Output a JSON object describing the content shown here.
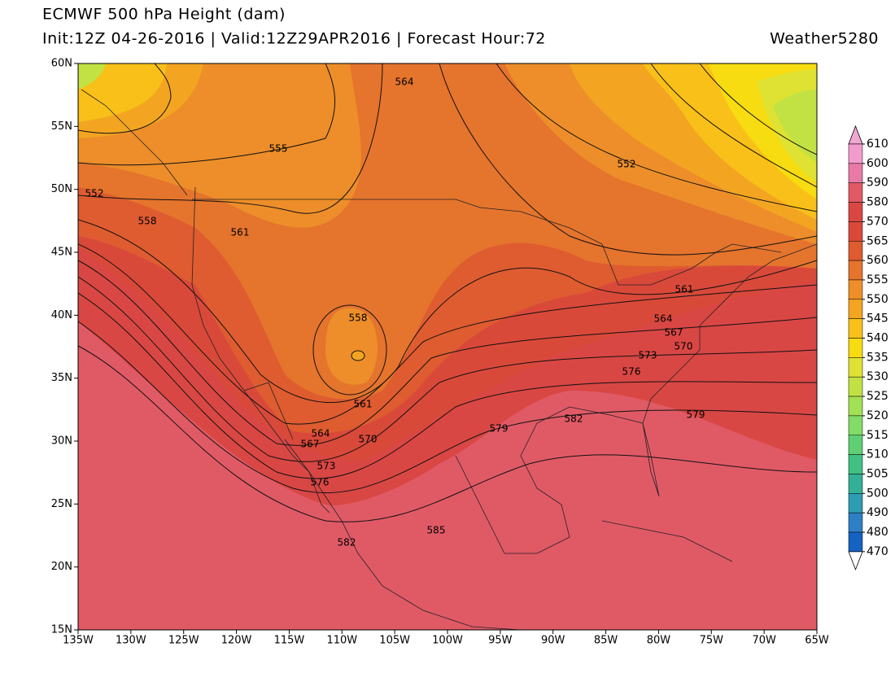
{
  "header": {
    "title": "ECMWF 500 hPa Height (dam)",
    "subtitle": "Init:12Z 04-26-2016 | Valid:12Z29APR2016 | Forecast Hour:72",
    "credit": "Weather5280"
  },
  "map": {
    "lat_ticks": [
      {
        "value": 60,
        "label": "60N"
      },
      {
        "value": 55,
        "label": "55N"
      },
      {
        "value": 50,
        "label": "50N"
      },
      {
        "value": 45,
        "label": "45N"
      },
      {
        "value": 40,
        "label": "40N"
      },
      {
        "value": 35,
        "label": "35N"
      },
      {
        "value": 30,
        "label": "30N"
      },
      {
        "value": 25,
        "label": "25N"
      },
      {
        "value": 20,
        "label": "20N"
      },
      {
        "value": 15,
        "label": "15N"
      }
    ],
    "lon_ticks": [
      {
        "value": -135,
        "label": "135W"
      },
      {
        "value": -130,
        "label": "130W"
      },
      {
        "value": -125,
        "label": "125W"
      },
      {
        "value": -120,
        "label": "120W"
      },
      {
        "value": -115,
        "label": "115W"
      },
      {
        "value": -110,
        "label": "110W"
      },
      {
        "value": -105,
        "label": "105W"
      },
      {
        "value": -100,
        "label": "100W"
      },
      {
        "value": -95,
        "label": "95W"
      },
      {
        "value": -90,
        "label": "90W"
      },
      {
        "value": -85,
        "label": "85W"
      },
      {
        "value": -80,
        "label": "80W"
      },
      {
        "value": -75,
        "label": "75W"
      },
      {
        "value": -70,
        "label": "70W"
      },
      {
        "value": -65,
        "label": "65W"
      }
    ],
    "contour_labels": [
      564,
      555,
      552,
      552,
      558,
      561,
      558,
      561,
      564,
      567,
      570,
      573,
      576,
      561,
      564,
      567,
      570,
      573,
      576,
      579,
      582,
      579,
      582,
      585
    ]
  },
  "colorbar": {
    "levels": [
      610,
      600,
      590,
      580,
      570,
      565,
      560,
      555,
      550,
      545,
      540,
      535,
      530,
      525,
      520,
      515,
      510,
      505,
      500,
      490,
      480,
      470
    ],
    "colors": [
      "#f29ccc",
      "#e97aa8",
      "#e05a66",
      "#d94744",
      "#d9493a",
      "#de5c30",
      "#e5742d",
      "#ed8e2a",
      "#f3a522",
      "#f8c018",
      "#f6dc10",
      "#dfe232",
      "#c2e243",
      "#a2e055",
      "#82dc66",
      "#5fcf74",
      "#42c084",
      "#33b096",
      "#2e9cb2",
      "#2d80c4",
      "#1462c2"
    ],
    "top_color": "#f2a6d2",
    "bottom_color": "#ffffff"
  }
}
